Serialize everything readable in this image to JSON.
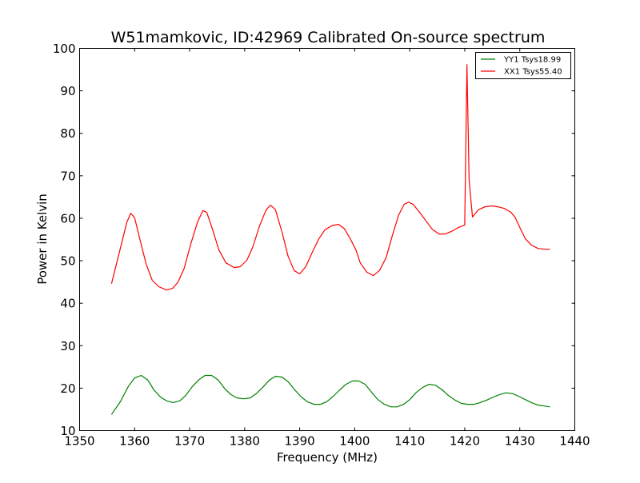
{
  "chart_data": {
    "type": "line",
    "title": "W51mamkovic, ID:42969 Calibrated On-source spectrum",
    "xlabel": "Frequency (MHz)",
    "ylabel": "Power in Kelvin",
    "xlim": [
      1350,
      1440
    ],
    "ylim": [
      10,
      100
    ],
    "xticks": [
      1350,
      1360,
      1370,
      1380,
      1390,
      1400,
      1410,
      1420,
      1430,
      1440
    ],
    "yticks": [
      10,
      20,
      30,
      40,
      50,
      60,
      70,
      80,
      90,
      100
    ],
    "grid": false,
    "legend_position": "top-right",
    "series": [
      {
        "name": "YY1 Tsys18.99",
        "color": "#008000",
        "x": [
          1355.8,
          1357.4,
          1358.9,
          1360.0,
          1361.2,
          1362.4,
          1363.5,
          1364.7,
          1365.8,
          1367.0,
          1368.2,
          1369.3,
          1370.5,
          1371.7,
          1372.8,
          1374.0,
          1375.2,
          1376.3,
          1377.5,
          1378.6,
          1379.8,
          1381.0,
          1382.1,
          1383.3,
          1384.5,
          1385.6,
          1386.8,
          1387.9,
          1389.1,
          1390.3,
          1391.4,
          1392.6,
          1393.8,
          1394.9,
          1396.1,
          1397.3,
          1398.4,
          1399.6,
          1400.7,
          1401.9,
          1403.1,
          1404.2,
          1405.4,
          1406.6,
          1407.7,
          1408.9,
          1410.0,
          1411.2,
          1412.4,
          1413.5,
          1414.7,
          1415.9,
          1417.0,
          1418.2,
          1419.4,
          1420.5,
          1421.7,
          1422.8,
          1424.0,
          1425.2,
          1426.3,
          1427.5,
          1428.7,
          1429.8,
          1431.0,
          1432.1,
          1433.3,
          1434.5,
          1435.5
        ],
        "y": [
          13.8,
          16.8,
          20.5,
          22.4,
          23.0,
          21.9,
          19.6,
          17.9,
          17.0,
          16.6,
          17.0,
          18.3,
          20.4,
          22.0,
          23.0,
          23.0,
          21.9,
          20.0,
          18.5,
          17.7,
          17.5,
          17.7,
          18.7,
          20.2,
          21.9,
          22.8,
          22.6,
          21.5,
          19.6,
          17.9,
          16.8,
          16.2,
          16.2,
          16.8,
          18.1,
          19.6,
          20.9,
          21.7,
          21.7,
          20.9,
          19.0,
          17.3,
          16.2,
          15.6,
          15.6,
          16.2,
          17.3,
          19.0,
          20.2,
          20.9,
          20.7,
          19.6,
          18.3,
          17.2,
          16.4,
          16.2,
          16.2,
          16.6,
          17.2,
          17.9,
          18.5,
          18.9,
          18.7,
          18.1,
          17.3,
          16.6,
          16.0,
          15.8,
          15.6
        ]
      },
      {
        "name": "XX1 Tsys55.40",
        "color": "#ff0000",
        "x": [
          1355.8,
          1357.4,
          1358.6,
          1359.3,
          1360.0,
          1361.0,
          1362.1,
          1363.2,
          1364.4,
          1365.8,
          1366.9,
          1367.9,
          1369.0,
          1370.2,
          1371.4,
          1372.4,
          1373.1,
          1374.1,
          1375.3,
          1376.6,
          1378.1,
          1379.2,
          1380.4,
          1381.5,
          1382.7,
          1383.9,
          1384.7,
          1385.6,
          1386.8,
          1387.9,
          1389.0,
          1390.0,
          1391.1,
          1392.3,
          1393.5,
          1394.6,
          1395.8,
          1397.0,
          1398.1,
          1399.1,
          1400.2,
          1401.0,
          1402.2,
          1403.4,
          1404.5,
          1405.7,
          1406.8,
          1408.0,
          1409.0,
          1409.8,
          1410.6,
          1411.8,
          1413.0,
          1414.1,
          1415.3,
          1416.4,
          1417.6,
          1418.8,
          1420.0,
          1420.4,
          1420.8,
          1421.4,
          1422.5,
          1423.7,
          1424.9,
          1426.0,
          1427.2,
          1428.4,
          1429.2,
          1430.1,
          1431.0,
          1432.1,
          1433.3,
          1434.5,
          1435.5
        ],
        "y": [
          44.6,
          52.9,
          59.1,
          61.2,
          60.1,
          54.8,
          49.2,
          45.4,
          43.9,
          43.1,
          43.5,
          45.0,
          48.2,
          53.9,
          59.0,
          61.8,
          61.4,
          57.6,
          52.6,
          49.5,
          48.4,
          48.6,
          50.1,
          53.3,
          58.2,
          62.0,
          63.1,
          62.0,
          56.7,
          51.0,
          47.7,
          46.9,
          48.6,
          52.0,
          55.2,
          57.3,
          58.2,
          58.6,
          57.6,
          55.4,
          52.6,
          49.5,
          47.3,
          46.5,
          47.7,
          50.7,
          55.8,
          60.8,
          63.3,
          63.8,
          63.3,
          61.4,
          59.3,
          57.4,
          56.3,
          56.3,
          56.9,
          57.8,
          58.4,
          96.2,
          68.9,
          60.3,
          62.0,
          62.7,
          62.9,
          62.7,
          62.3,
          61.4,
          60.1,
          57.6,
          55.2,
          53.7,
          52.9,
          52.7,
          52.7
        ]
      }
    ]
  }
}
